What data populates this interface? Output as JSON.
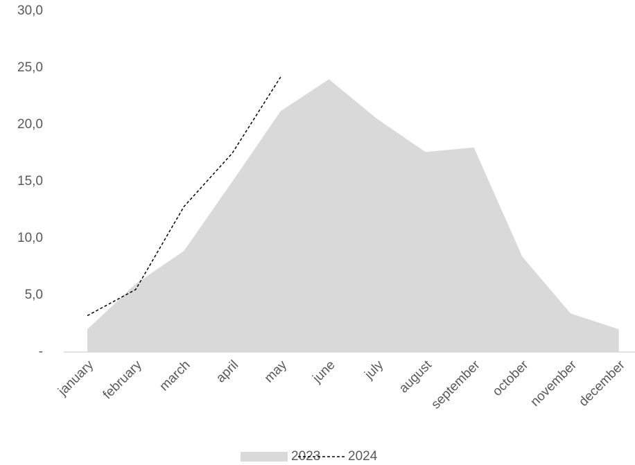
{
  "chart_data": {
    "type": "area",
    "categories": [
      "january",
      "february",
      "march",
      "april",
      "may",
      "june",
      "july",
      "august",
      "september",
      "october",
      "november",
      "december"
    ],
    "series": [
      {
        "name": "2023",
        "type": "area",
        "color": "#d9d9d9",
        "values": [
          2.0,
          6.0,
          8.9,
          15.0,
          21.2,
          24.0,
          20.5,
          17.6,
          18.0,
          8.4,
          3.4,
          2.0
        ]
      },
      {
        "name": "2024",
        "type": "line",
        "color": "#000000",
        "dashed": true,
        "values": [
          3.2,
          5.5,
          12.8,
          17.5,
          24.2,
          null,
          null,
          null,
          null,
          null,
          null,
          null
        ]
      }
    ],
    "ylim": [
      0,
      30
    ],
    "yticks": [
      {
        "value": 0,
        "label": "-"
      },
      {
        "value": 5,
        "label": "5,0"
      },
      {
        "value": 10,
        "label": "10,0"
      },
      {
        "value": 15,
        "label": "15,0"
      },
      {
        "value": 20,
        "label": "20,0"
      },
      {
        "value": 25,
        "label": "25,0"
      },
      {
        "value": 30,
        "label": "30,0"
      }
    ],
    "legend": "bottom"
  }
}
